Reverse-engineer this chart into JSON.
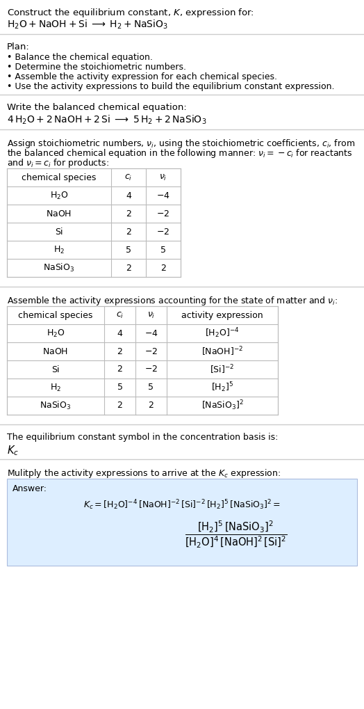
{
  "title_line1": "Construct the equilibrium constant, $K$, expression for:",
  "title_line2": "$\\mathrm{H_2O + NaOH + Si} \\;\\longrightarrow\\; \\mathrm{H_2 + NaSiO_3}$",
  "plan_header": "Plan:",
  "plan_items": [
    "\\u2022 Balance the chemical equation.",
    "\\u2022 Determine the stoichiometric numbers.",
    "\\u2022 Assemble the activity expression for each chemical species.",
    "\\u2022 Use the activity expressions to build the equilibrium constant expression."
  ],
  "balanced_header": "Write the balanced chemical equation:",
  "balanced_eq": "$\\mathrm{4\\,H_2O + 2\\,NaOH + 2\\,Si} \\;\\longrightarrow\\; \\mathrm{5\\,H_2 + 2\\,NaSiO_3}$",
  "stoich_text1": "Assign stoichiometric numbers, $\\nu_i$, using the stoichiometric coefficients, $c_i$, from",
  "stoich_text2": "the balanced chemical equation in the following manner: $\\nu_i = -c_i$ for reactants",
  "stoich_text3": "and $\\nu_i = c_i$ for products:",
  "table1_cols": [
    "chemical species",
    "$c_i$",
    "$\\nu_i$"
  ],
  "table1_rows": [
    [
      "$\\mathrm{H_2O}$",
      "4",
      "$-4$"
    ],
    [
      "$\\mathrm{NaOH}$",
      "2",
      "$-2$"
    ],
    [
      "$\\mathrm{Si}$",
      "2",
      "$-2$"
    ],
    [
      "$\\mathrm{H_2}$",
      "5",
      "5"
    ],
    [
      "$\\mathrm{NaSiO_3}$",
      "2",
      "2"
    ]
  ],
  "activity_header": "Assemble the activity expressions accounting for the state of matter and $\\nu_i$:",
  "table2_cols": [
    "chemical species",
    "$c_i$",
    "$\\nu_i$",
    "activity expression"
  ],
  "table2_rows": [
    [
      "$\\mathrm{H_2O}$",
      "4",
      "$-4$",
      "$[\\mathrm{H_2O}]^{-4}$"
    ],
    [
      "$\\mathrm{NaOH}$",
      "2",
      "$-2$",
      "$[\\mathrm{NaOH}]^{-2}$"
    ],
    [
      "$\\mathrm{Si}$",
      "2",
      "$-2$",
      "$[\\mathrm{Si}]^{-2}$"
    ],
    [
      "$\\mathrm{H_2}$",
      "5",
      "5",
      "$[\\mathrm{H_2}]^{5}$"
    ],
    [
      "$\\mathrm{NaSiO_3}$",
      "2",
      "2",
      "$[\\mathrm{NaSiO_3}]^{2}$"
    ]
  ],
  "kc_header": "The equilibrium constant symbol in the concentration basis is:",
  "kc_symbol": "$K_c$",
  "multiply_header": "Mulitply the activity expressions to arrive at the $K_c$ expression:",
  "bg_color": "#ffffff",
  "table_bg": "#ffffff",
  "table_border": "#bbbbbb",
  "answer_bg": "#ddeeff",
  "answer_border": "#aabbdd",
  "text_color": "#000000",
  "separator_color": "#cccccc"
}
